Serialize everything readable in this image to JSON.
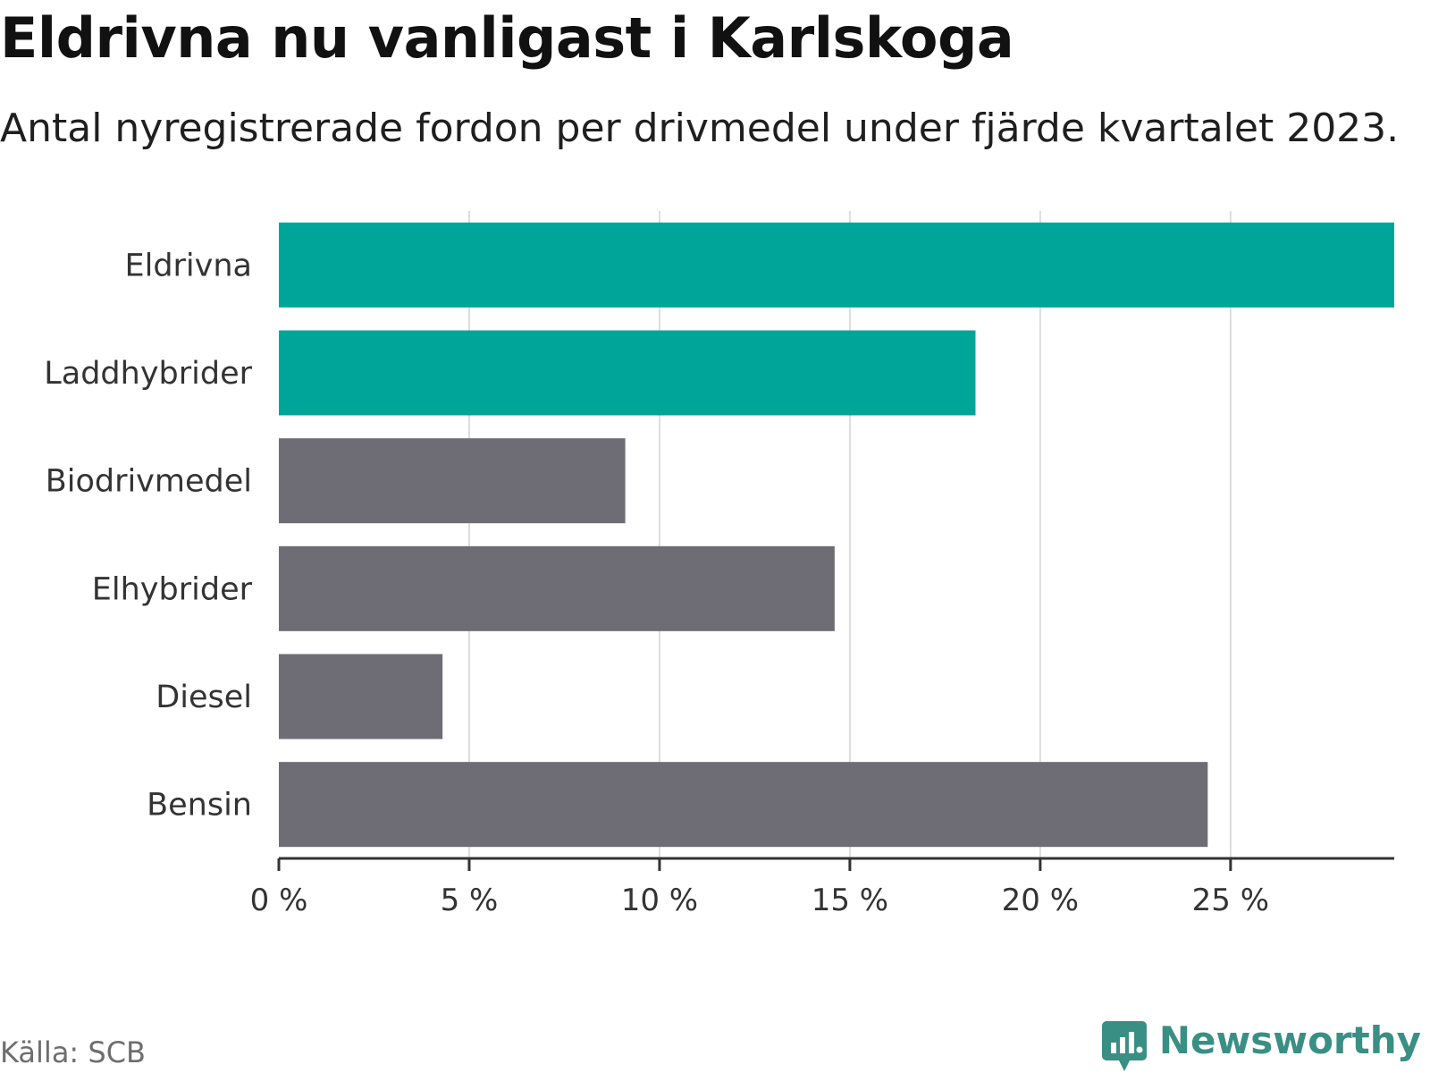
{
  "title": "Eldrivna nu vanligast i Karlskoga",
  "subtitle": "Antal nyregistrerade fordon per drivmedel under fjärde kvartalet 2023.",
  "source": "Källa: SCB",
  "brand": "Newsworthy",
  "colors": {
    "highlight": "#00a59a",
    "default": "#6e6d75",
    "grid": "#dddddd",
    "axis": "#333333",
    "brand": "#3a8f84"
  },
  "chart_data": {
    "type": "bar",
    "orientation": "horizontal",
    "title": "Eldrivna nu vanligast i Karlskoga",
    "subtitle": "Antal nyregistrerade fordon per drivmedel under fjärde kvartalet 2023.",
    "categories": [
      "Eldrivna",
      "Laddhybrider",
      "Biodrivmedel",
      "Elhybrider",
      "Diesel",
      "Bensin"
    ],
    "values": [
      29.3,
      18.3,
      9.1,
      14.6,
      4.3,
      24.4
    ],
    "highlighted": [
      true,
      true,
      false,
      false,
      false,
      false
    ],
    "unit": "%",
    "xlim": [
      0,
      29.3
    ],
    "xticks": [
      0,
      5,
      10,
      15,
      20,
      25
    ],
    "xtick_labels": [
      "0 %",
      "5 %",
      "10 %",
      "15 %",
      "20 %",
      "25 %"
    ],
    "xlabel": "",
    "ylabel": "",
    "grid": true
  }
}
